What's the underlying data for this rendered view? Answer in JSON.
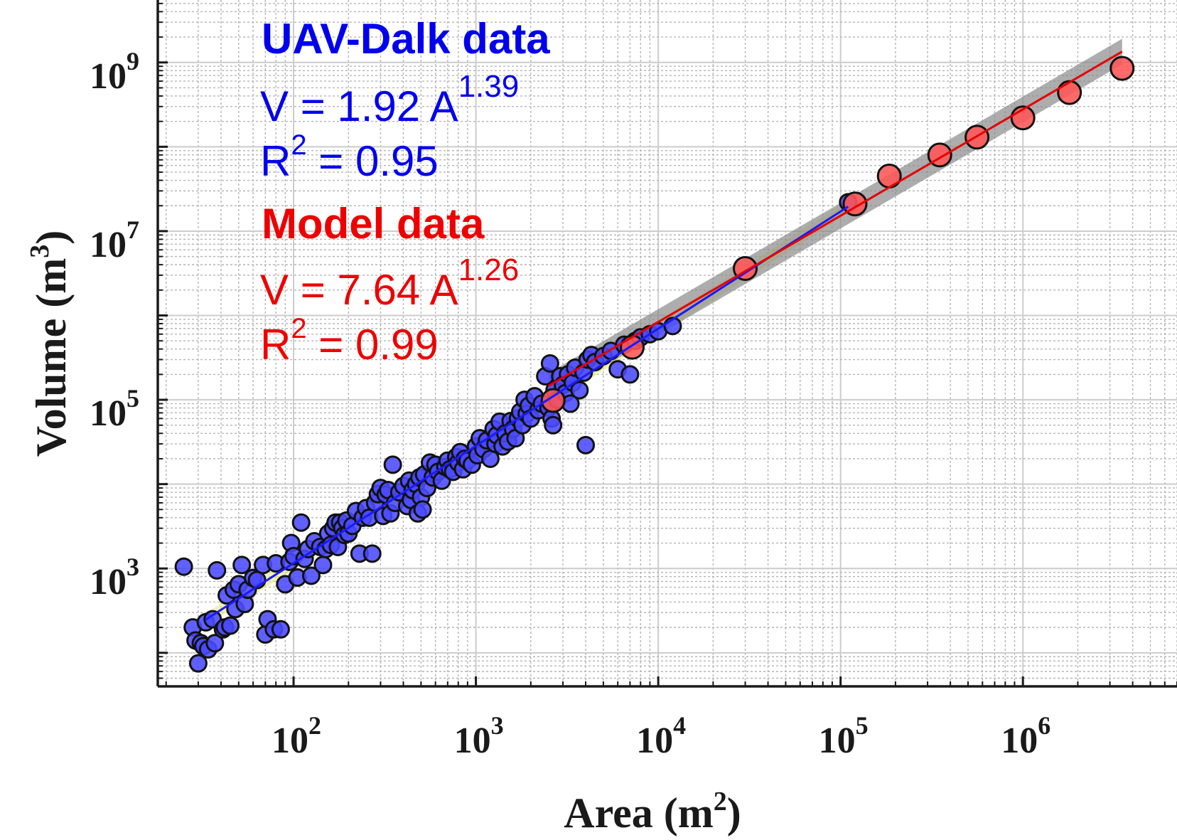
{
  "chart_data": {
    "type": "scatter",
    "title": "",
    "xlabel": "Area (m",
    "xlabel_sup": "2",
    "xlabel_end": ")",
    "ylabel": "Volume (m",
    "ylabel_sup": "3",
    "ylabel_end": ")",
    "xscale": "log",
    "yscale": "log",
    "xlim": [
      18,
      7000000
    ],
    "ylim": [
      40,
      5500000000
    ],
    "grid": true,
    "x_ticks": [
      {
        "value": 100,
        "base": "10",
        "exp": "2"
      },
      {
        "value": 1000,
        "base": "10",
        "exp": "3"
      },
      {
        "value": 10000,
        "base": "10",
        "exp": "4"
      },
      {
        "value": 100000,
        "base": "10",
        "exp": "5"
      },
      {
        "value": 1000000,
        "base": "10",
        "exp": "6"
      }
    ],
    "y_ticks": [
      {
        "value": 1000,
        "base": "10",
        "exp": "3"
      },
      {
        "value": 100000,
        "base": "10",
        "exp": "5"
      },
      {
        "value": 10000000,
        "base": "10",
        "exp": "7"
      },
      {
        "value": 1000000000,
        "base": "10",
        "exp": "9"
      }
    ],
    "annotations": {
      "uav_title": "UAV-Dalk data",
      "uav_eq": "V = 1.92 A",
      "uav_eq_exp": "1.39",
      "uav_r2_pre": "R",
      "uav_r2_sup": "2",
      "uav_r2_val": " = 0.95",
      "model_title": "Model data",
      "model_eq": "V = 7.64 A",
      "model_eq_exp": "1.26",
      "model_r2_pre": "R",
      "model_r2_sup": "2",
      "model_r2_val": " = 0.99"
    },
    "series": [
      {
        "color": "#4a4aff",
        "fit": {
          "coef": 1.92,
          "exp": 1.39,
          "x_range": [
            33,
            110000
          ],
          "color": "#1a1aff",
          "band_color": "#e8e870"
        },
        "points": [
          [
            25,
            1050
          ],
          [
            28,
            200
          ],
          [
            29,
            140
          ],
          [
            30,
            75
          ],
          [
            31,
            130
          ],
          [
            32,
            120
          ],
          [
            33,
            230
          ],
          [
            34,
            110
          ],
          [
            36,
            250
          ],
          [
            37,
            130
          ],
          [
            38,
            950
          ],
          [
            41,
            190
          ],
          [
            42,
            200
          ],
          [
            43,
            480
          ],
          [
            45,
            210
          ],
          [
            47,
            560
          ],
          [
            48,
            330
          ],
          [
            50,
            650
          ],
          [
            52,
            1100
          ],
          [
            54,
            380
          ],
          [
            56,
            560
          ],
          [
            60,
            770
          ],
          [
            63,
            730
          ],
          [
            68,
            1100
          ],
          [
            70,
            165
          ],
          [
            72,
            250
          ],
          [
            78,
            190
          ],
          [
            80,
            1150
          ],
          [
            85,
            190
          ],
          [
            90,
            650
          ],
          [
            95,
            1200
          ],
          [
            97,
            2000
          ],
          [
            100,
            1400
          ],
          [
            105,
            780
          ],
          [
            110,
            3500
          ],
          [
            115,
            1300
          ],
          [
            120,
            1700
          ],
          [
            125,
            820
          ],
          [
            130,
            2100
          ],
          [
            140,
            1800
          ],
          [
            145,
            1100
          ],
          [
            150,
            1700
          ],
          [
            155,
            2600
          ],
          [
            160,
            1900
          ],
          [
            165,
            3000
          ],
          [
            170,
            3500
          ],
          [
            175,
            1800
          ],
          [
            180,
            3500
          ],
          [
            185,
            3000
          ],
          [
            190,
            2500
          ],
          [
            195,
            3700
          ],
          [
            200,
            2600
          ],
          [
            210,
            3200
          ],
          [
            220,
            4800
          ],
          [
            230,
            1500
          ],
          [
            240,
            4000
          ],
          [
            250,
            5200
          ],
          [
            260,
            4000
          ],
          [
            270,
            1500
          ],
          [
            280,
            6000
          ],
          [
            290,
            7600
          ],
          [
            300,
            9000
          ],
          [
            310,
            4200
          ],
          [
            320,
            7500
          ],
          [
            330,
            8500
          ],
          [
            340,
            4500
          ],
          [
            350,
            17000
          ],
          [
            360,
            6000
          ],
          [
            380,
            8000
          ],
          [
            400,
            9500
          ],
          [
            420,
            5500
          ],
          [
            430,
            11000
          ],
          [
            440,
            6500
          ],
          [
            450,
            8500
          ],
          [
            470,
            10000
          ],
          [
            480,
            4500
          ],
          [
            490,
            12000
          ],
          [
            500,
            7000
          ],
          [
            510,
            5000
          ],
          [
            520,
            13000
          ],
          [
            540,
            9000
          ],
          [
            560,
            18000
          ],
          [
            580,
            12000
          ],
          [
            600,
            17000
          ],
          [
            620,
            14000
          ],
          [
            650,
            11000
          ],
          [
            680,
            16000
          ],
          [
            700,
            19000
          ],
          [
            720,
            15000
          ],
          [
            750,
            14000
          ],
          [
            780,
            21000
          ],
          [
            800,
            18000
          ],
          [
            820,
            24000
          ],
          [
            850,
            15000
          ],
          [
            870,
            20000
          ],
          [
            900,
            19000
          ],
          [
            950,
            17000
          ],
          [
            1000,
            28000
          ],
          [
            1020,
            22000
          ],
          [
            1050,
            35000
          ],
          [
            1100,
            26000
          ],
          [
            1150,
            33000
          ],
          [
            1200,
            20000
          ],
          [
            1250,
            45000
          ],
          [
            1280,
            30000
          ],
          [
            1300,
            38000
          ],
          [
            1350,
            55000
          ],
          [
            1400,
            28000
          ],
          [
            1450,
            40000
          ],
          [
            1500,
            32000
          ],
          [
            1550,
            56000
          ],
          [
            1600,
            45000
          ],
          [
            1650,
            35000
          ],
          [
            1700,
            60000
          ],
          [
            1750,
            72000
          ],
          [
            1800,
            50000
          ],
          [
            1850,
            100000
          ],
          [
            1900,
            68000
          ],
          [
            1950,
            85000
          ],
          [
            2000,
            60000
          ],
          [
            2100,
            110000
          ],
          [
            2200,
            75000
          ],
          [
            2300,
            90000
          ],
          [
            2400,
            190000
          ],
          [
            2500,
            80000
          ],
          [
            2550,
            270000
          ],
          [
            2600,
            60000
          ],
          [
            2650,
            50000
          ],
          [
            2700,
            130000
          ],
          [
            2800,
            100000
          ],
          [
            2900,
            190000
          ],
          [
            3000,
            150000
          ],
          [
            3100,
            120000
          ],
          [
            3200,
            200000
          ],
          [
            3300,
            90000
          ],
          [
            3400,
            160000
          ],
          [
            3500,
            240000
          ],
          [
            3700,
            130000
          ],
          [
            3900,
            210000
          ],
          [
            4000,
            29000
          ],
          [
            4100,
            300000
          ],
          [
            4300,
            340000
          ],
          [
            4500,
            280000
          ],
          [
            5000,
            330000
          ],
          [
            5500,
            380000
          ],
          [
            6000,
            230000
          ],
          [
            6500,
            450000
          ],
          [
            7000,
            200000
          ],
          [
            7500,
            500000
          ],
          [
            8000,
            550000
          ],
          [
            9000,
            600000
          ],
          [
            10000,
            650000
          ],
          [
            12000,
            750000
          ],
          [
            110000,
            22000000
          ]
        ]
      },
      {
        "color": "#ff5555",
        "fit": {
          "coef": 7.64,
          "exp": 1.26,
          "x_range": [
            2500,
            3500000
          ],
          "color": "#e60000",
          "band_color": "#8a8a8a"
        },
        "points": [
          [
            2650,
            98000
          ],
          [
            7200,
            420000
          ],
          [
            30000,
            3600000
          ],
          [
            120000,
            21000000
          ],
          [
            185000,
            45000000
          ],
          [
            350000,
            80000000
          ],
          [
            560000,
            130000000
          ],
          [
            1000000,
            220000000
          ],
          [
            1800000,
            440000000
          ],
          [
            3500000,
            850000000
          ]
        ]
      }
    ]
  }
}
